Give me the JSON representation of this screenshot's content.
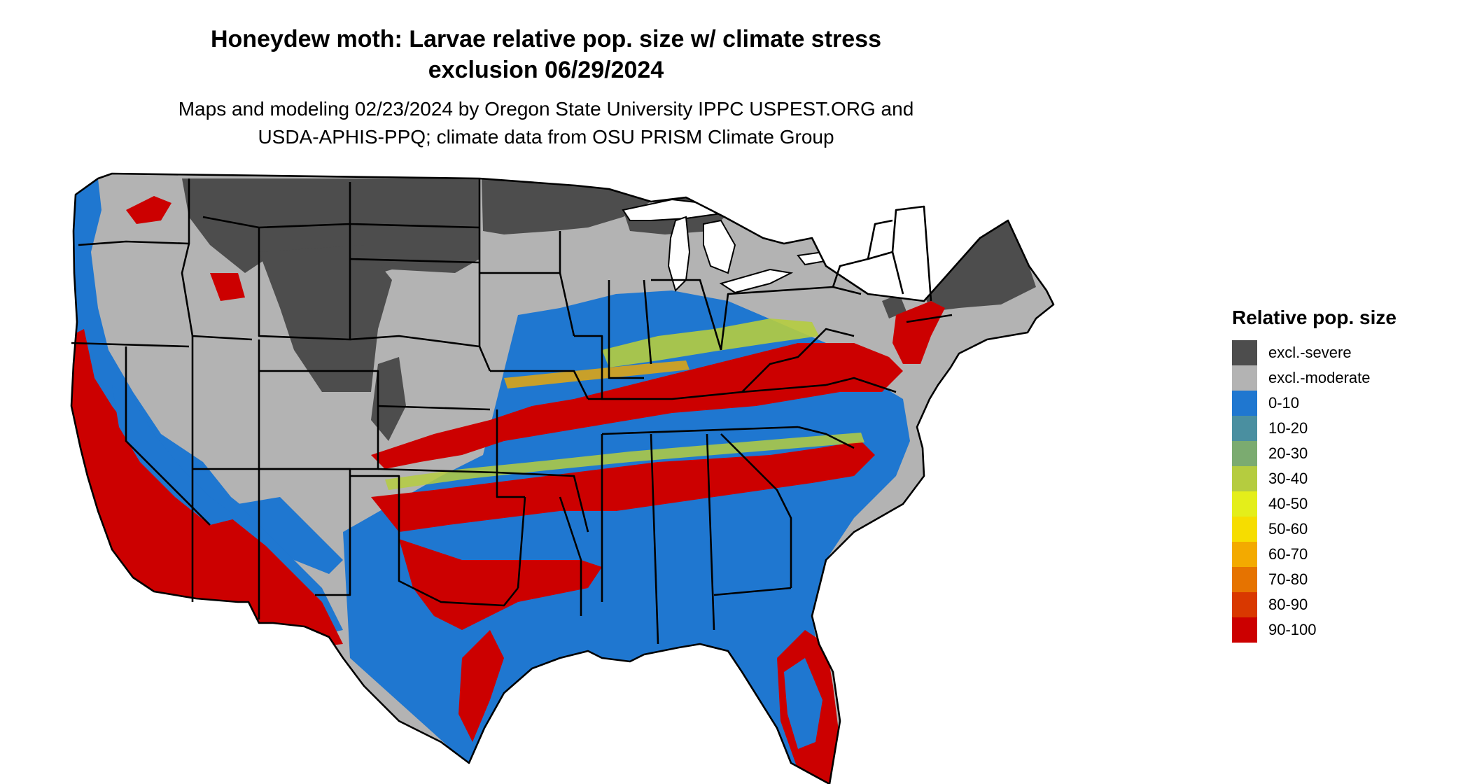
{
  "title": {
    "line1": "Honeydew moth: Larvae relative pop. size w/ climate stress",
    "line2": "exclusion 06/29/2024"
  },
  "subtitle": {
    "line1": "Maps and modeling 02/23/2024 by Oregon State University IPPC USPEST.ORG and",
    "line2": "USDA-APHIS-PPQ; climate data from OSU PRISM Climate Group"
  },
  "legend": {
    "title": "Relative pop. size",
    "items": [
      {
        "label": "excl.-severe",
        "color": "#4d4d4d"
      },
      {
        "label": "excl.-moderate",
        "color": "#b3b3b3"
      },
      {
        "label": "0-10",
        "color": "#1f77d0"
      },
      {
        "label": "10-20",
        "color": "#4a8fa0"
      },
      {
        "label": "20-30",
        "color": "#7bab70"
      },
      {
        "label": "30-40",
        "color": "#b5cc3f"
      },
      {
        "label": "40-50",
        "color": "#e4ee1a"
      },
      {
        "label": "50-60",
        "color": "#f6dd00"
      },
      {
        "label": "60-70",
        "color": "#f3aa00"
      },
      {
        "label": "70-80",
        "color": "#e67300"
      },
      {
        "label": "80-90",
        "color": "#d93800"
      },
      {
        "label": "90-100",
        "color": "#cc0000"
      }
    ]
  },
  "colors": {
    "severe": "#4d4d4d",
    "moderate": "#b3b3b3",
    "low": "#1f77d0",
    "mid": "#b5cc3f",
    "orange": "#f3aa00",
    "high": "#cc0000",
    "lake": "#ffffff",
    "border": "#000000"
  }
}
